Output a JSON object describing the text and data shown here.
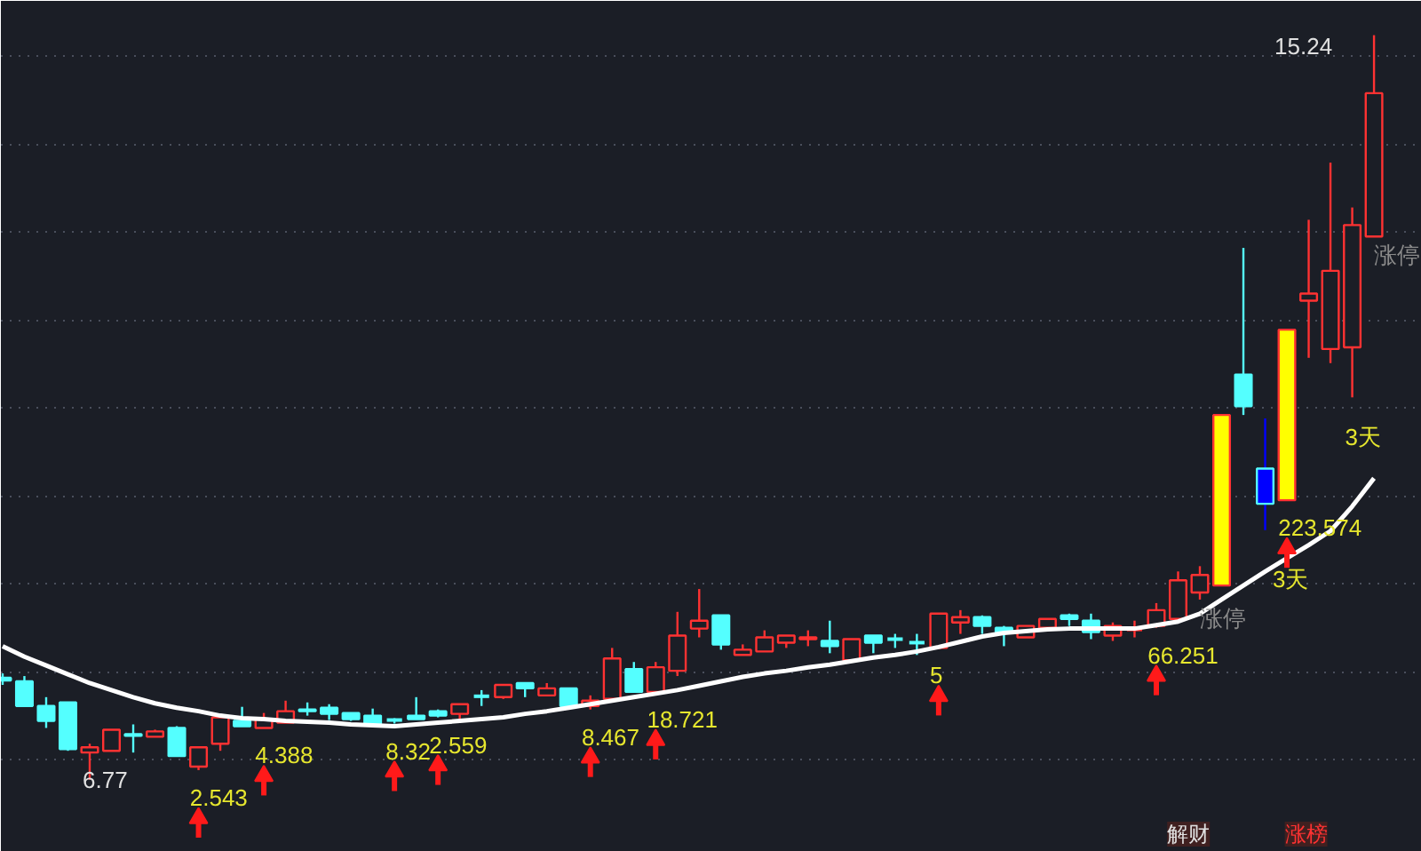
{
  "chart_data": {
    "type": "candlestick",
    "categories": [
      null,
      null,
      null,
      null,
      null,
      null,
      null,
      null,
      null,
      null,
      null,
      null,
      null,
      null,
      null,
      null,
      null,
      null,
      null,
      null,
      null,
      null,
      null,
      null,
      null,
      null,
      null,
      null,
      null,
      null,
      null,
      null,
      null,
      null,
      null,
      null,
      null,
      null,
      null,
      null,
      null,
      null,
      null,
      null,
      null,
      null,
      null,
      null,
      null,
      null,
      null,
      null,
      null,
      null,
      null,
      null,
      null,
      null,
      null,
      null,
      null,
      null,
      null,
      null
    ],
    "ohlc": [
      [
        7.93,
        7.98,
        7.85,
        7.9
      ],
      [
        7.89,
        7.95,
        7.61,
        7.61
      ],
      [
        7.61,
        7.71,
        7.36,
        7.44
      ],
      [
        7.65,
        7.65,
        7.1,
        7.12
      ],
      [
        7.08,
        7.18,
        6.77,
        7.14
      ],
      [
        7.1,
        7.34,
        7.1,
        7.34
      ],
      [
        7.29,
        7.4,
        7.08,
        7.27
      ],
      [
        7.26,
        7.34,
        7.26,
        7.32
      ],
      [
        7.36,
        7.38,
        7.04,
        7.04
      ],
      [
        6.92,
        7.14,
        6.88,
        7.14
      ],
      [
        7.18,
        7.48,
        7.1,
        7.48
      ],
      [
        7.44,
        7.6,
        7.38,
        7.38
      ],
      [
        7.36,
        7.53,
        7.36,
        7.46
      ],
      [
        7.42,
        7.67,
        7.42,
        7.55
      ],
      [
        7.57,
        7.65,
        7.5,
        7.55
      ],
      [
        7.59,
        7.63,
        7.45,
        7.52
      ],
      [
        7.53,
        7.53,
        7.44,
        7.46
      ],
      [
        7.5,
        7.58,
        7.4,
        7.4
      ],
      [
        7.45,
        7.47,
        7.41,
        7.44
      ],
      [
        7.5,
        7.71,
        7.46,
        7.46
      ],
      [
        7.55,
        7.57,
        7.48,
        7.5
      ],
      [
        7.52,
        7.63,
        7.42,
        7.63
      ],
      [
        7.72,
        7.79,
        7.61,
        7.7
      ],
      [
        7.71,
        7.85,
        7.69,
        7.85
      ],
      [
        7.87,
        7.87,
        7.71,
        7.81
      ],
      [
        7.73,
        7.87,
        7.73,
        7.81
      ],
      [
        7.81,
        7.81,
        7.61,
        7.61
      ],
      [
        7.61,
        7.73,
        7.57,
        7.67
      ],
      [
        7.69,
        8.27,
        7.69,
        8.15
      ],
      [
        8.03,
        8.11,
        7.77,
        7.77
      ],
      [
        7.77,
        8.11,
        7.77,
        8.05
      ],
      [
        8.01,
        8.68,
        7.95,
        8.41
      ],
      [
        8.49,
        8.94,
        8.39,
        8.58
      ],
      [
        8.64,
        8.64,
        8.25,
        8.31
      ],
      [
        8.19,
        8.31,
        8.19,
        8.25
      ],
      [
        8.23,
        8.47,
        8.23,
        8.39
      ],
      [
        8.33,
        8.41,
        8.27,
        8.41
      ],
      [
        8.37,
        8.47,
        8.29,
        8.39
      ],
      [
        8.35,
        8.58,
        8.21,
        8.29
      ],
      [
        8.13,
        8.37,
        8.13,
        8.37
      ],
      [
        8.41,
        8.41,
        8.21,
        8.33
      ],
      [
        8.37,
        8.43,
        8.27,
        8.35
      ],
      [
        8.33,
        8.43,
        8.19,
        8.31
      ],
      [
        8.27,
        8.66,
        8.27,
        8.66
      ],
      [
        8.56,
        8.7,
        8.43,
        8.62
      ],
      [
        8.62,
        8.64,
        8.43,
        8.52
      ],
      [
        8.5,
        8.52,
        8.29,
        8.45
      ],
      [
        8.39,
        8.52,
        8.39,
        8.52
      ],
      [
        8.5,
        8.6,
        8.5,
        8.6
      ],
      [
        8.64,
        8.66,
        8.52,
        8.6
      ],
      [
        8.58,
        8.66,
        8.37,
        8.45
      ],
      [
        8.41,
        8.56,
        8.35,
        8.52
      ],
      [
        8.48,
        8.58,
        8.39,
        8.5
      ],
      [
        8.52,
        8.78,
        8.5,
        8.7
      ],
      [
        8.6,
        9.14,
        8.56,
        9.04
      ],
      [
        8.9,
        9.2,
        8.82,
        9.1
      ],
      [
        8.98,
        10.92,
        8.98,
        10.92
      ],
      [
        11.38,
        12.82,
        10.92,
        11.02
      ],
      [
        10.31,
        10.88,
        9.61,
        9.91
      ],
      [
        9.95,
        11.89,
        9.95,
        11.89
      ],
      [
        12.22,
        13.14,
        11.57,
        12.3
      ],
      [
        11.67,
        13.79,
        11.51,
        12.56
      ],
      [
        11.69,
        13.28,
        11.12,
        13.08
      ],
      [
        12.95,
        15.24,
        12.95,
        14.58
      ]
    ],
    "colors": [
      "#54ffff",
      "#54ffff",
      "#54ffff",
      "#54ffff",
      "#ff3232",
      "#ff3232",
      "#54ffff",
      "#ff3232",
      "#54ffff",
      "#ff3232",
      "#ff3232",
      "#54ffff",
      "#ff3232",
      "#ff3232",
      "#54ffff",
      "#54ffff",
      "#54ffff",
      "#54ffff",
      "#54ffff",
      "#54ffff",
      "#54ffff",
      "#ff3232",
      "#54ffff",
      "#ff3232",
      "#54ffff",
      "#ff3232",
      "#54ffff",
      "#ff3232",
      "#ff3232",
      "#54ffff",
      "#ff3232",
      "#ff3232",
      "#ff3232",
      "#54ffff",
      "#ff3232",
      "#ff3232",
      "#ff3232",
      "#ff3232",
      "#54ffff",
      "#ff3232",
      "#54ffff",
      "#54ffff",
      "#54ffff",
      "#ff3232",
      "#ff3232",
      "#54ffff",
      "#54ffff",
      "#ff3232",
      "#ff3232",
      "#54ffff",
      "#54ffff",
      "#ff3232",
      "#ff3232",
      "#ff3232",
      "#ff3232",
      "#ff3232",
      "#ffff00",
      "#54ffff",
      "#0000ff",
      "#ffff00",
      "#ff3232",
      "#ff3232",
      "#ff3232",
      "#ff3232"
    ],
    "value_labels": [
      null,
      null,
      null,
      null,
      null,
      null,
      null,
      null,
      null,
      "2.543",
      null,
      null,
      "4.388",
      null,
      null,
      null,
      null,
      null,
      "8.32",
      null,
      "2.559",
      null,
      null,
      null,
      null,
      null,
      null,
      "8.467",
      null,
      null,
      "18.721",
      null,
      null,
      null,
      null,
      null,
      null,
      null,
      null,
      null,
      null,
      null,
      null,
      "5",
      null,
      null,
      null,
      null,
      null,
      null,
      null,
      null,
      null,
      "66.251",
      null,
      null,
      null,
      null,
      null,
      "223.574",
      null,
      null,
      null,
      null
    ],
    "series": [
      {
        "type": "line",
        "color": "#ffffff",
        "values": [
          8.29,
          8.17,
          8.07,
          7.97,
          7.87,
          7.79,
          7.71,
          7.64,
          7.59,
          7.55,
          7.5,
          7.47,
          7.46,
          7.44,
          7.43,
          7.42,
          7.4,
          7.39,
          7.38,
          7.4,
          7.42,
          7.44,
          7.46,
          7.48,
          7.52,
          7.55,
          7.59,
          7.63,
          7.67,
          7.71,
          7.75,
          7.79,
          7.84,
          7.89,
          7.94,
          7.98,
          8.01,
          8.05,
          8.08,
          8.12,
          8.16,
          8.19,
          8.23,
          8.28,
          8.34,
          8.4,
          8.44,
          8.46,
          8.48,
          8.49,
          8.49,
          8.49,
          8.49,
          8.53,
          8.57,
          8.66,
          8.82,
          8.98,
          9.14,
          9.29,
          9.44,
          9.6,
          9.88,
          10.2
        ]
      }
    ],
    "ylim": [
      5.95,
      15.63
    ],
    "yticks": [
      {
        "value": 7,
        "label": null
      },
      {
        "value": 8,
        "label": null
      },
      {
        "value": 9,
        "label": null
      },
      {
        "value": 10,
        "label": null
      },
      {
        "value": 11,
        "label": null
      },
      {
        "value": 12,
        "label": null
      },
      {
        "value": 13,
        "label": null
      },
      {
        "value": 14,
        "label": null
      },
      {
        "value": 15,
        "label": null
      }
    ],
    "grid": "y",
    "tick_labels": false,
    "annotations": [
      "6.77",
      "15.24",
      "涨停",
      "3天",
      "3天",
      "涨停",
      "解财",
      "涨榜"
    ]
  }
}
